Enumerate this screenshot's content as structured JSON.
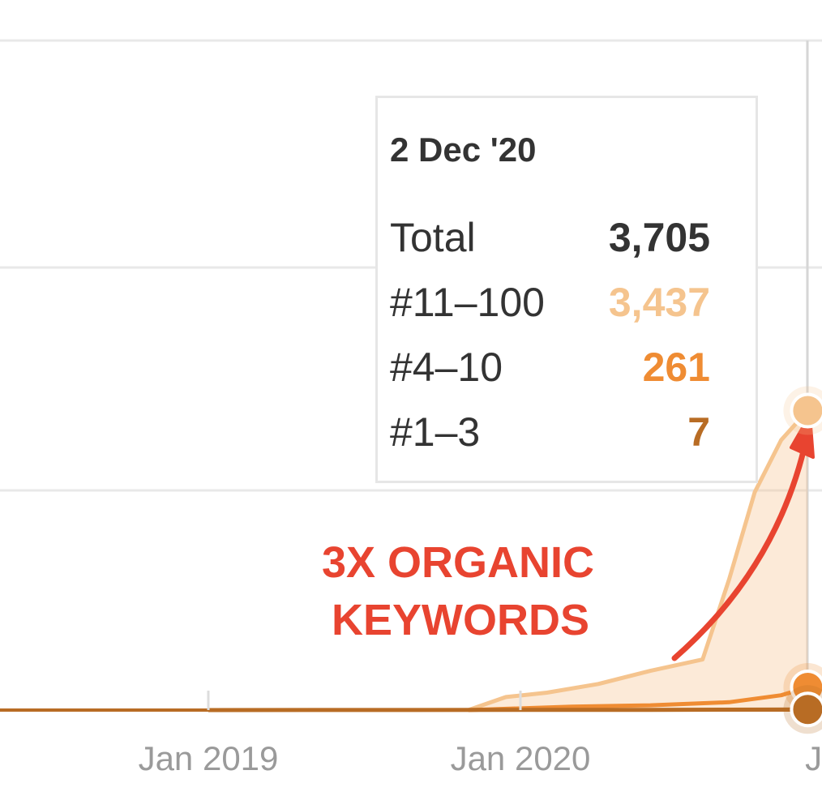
{
  "chart_data": {
    "type": "area",
    "title": "",
    "xlabel": "",
    "ylabel": "",
    "x_ticks": [
      "Jan 2019",
      "Jan 2020",
      "Jan"
    ],
    "series": [
      {
        "name": "#11–100",
        "color": "#f5c48e",
        "points": [
          [
            "2019-11-01",
            0
          ],
          [
            "2019-12-15",
            150
          ],
          [
            "2020-02-01",
            200
          ],
          [
            "2020-04-01",
            300
          ],
          [
            "2020-06-01",
            450
          ],
          [
            "2020-08-01",
            580
          ],
          [
            "2020-09-01",
            1500
          ],
          [
            "2020-10-01",
            2500
          ],
          [
            "2020-11-01",
            3100
          ],
          [
            "2020-12-02",
            3437
          ]
        ]
      },
      {
        "name": "#4–10",
        "color": "#ef8c33",
        "points": [
          [
            "2019-11-01",
            0
          ],
          [
            "2020-03-01",
            40
          ],
          [
            "2020-06-01",
            55
          ],
          [
            "2020-09-01",
            90
          ],
          [
            "2020-11-01",
            170
          ],
          [
            "2020-12-02",
            261
          ]
        ]
      },
      {
        "name": "#1–3",
        "color": "#b86c24",
        "points": [
          [
            "2019-01-01",
            0
          ],
          [
            "2020-06-01",
            3
          ],
          [
            "2020-12-02",
            7
          ]
        ]
      }
    ],
    "highlight_date": "2 Dec '20",
    "grid": true,
    "legend": "none"
  },
  "tooltip": {
    "date": "2 Dec '20",
    "rows": [
      {
        "label": "Total",
        "value": "3,705",
        "color": "#333333"
      },
      {
        "label": "#11–100",
        "value": "3,437",
        "color": "#f5c48e"
      },
      {
        "label": "#4–10",
        "value": "261",
        "color": "#ef8c33"
      },
      {
        "label": "#1–3",
        "value": "7",
        "color": "#b86c24"
      }
    ]
  },
  "annotation": {
    "line1": "3X ORGANIC",
    "line2": "KEYWORDS",
    "color": "#e84430"
  }
}
